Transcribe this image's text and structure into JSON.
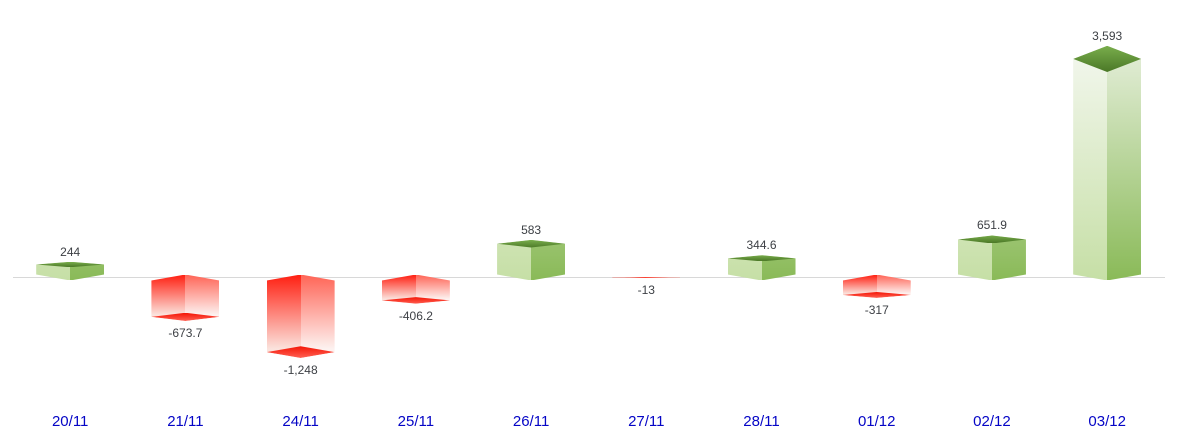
{
  "chart_data": {
    "type": "bar",
    "style": "3d-box-bars",
    "title": "",
    "xlabel": "",
    "ylabel": "",
    "grid": false,
    "legend": false,
    "baseline": 0,
    "ylim": [
      -1400,
      3700
    ],
    "categories": [
      "20/11",
      "21/11",
      "24/11",
      "25/11",
      "26/11",
      "27/11",
      "28/11",
      "01/12",
      "02/12",
      "03/12"
    ],
    "series": [
      {
        "name": "daily-values",
        "values": [
          244,
          -673.7,
          -1248,
          -406.2,
          583,
          -13,
          344.6,
          -317,
          651.9,
          3593
        ],
        "value_labels": [
          "244",
          "-673.7",
          "-1,248",
          "-406.2",
          "583",
          "-13",
          "344.6",
          "-317",
          "651.9",
          "3,593"
        ]
      }
    ],
    "colors": {
      "positive_cap_top": "#79ad4c",
      "positive_cap_bottom": "#4b7827",
      "positive_face_left_deep": "#c6dfa6",
      "positive_face_left_light": "#f3f7ee",
      "positive_face_right_deep": "#8aba58",
      "positive_face_right_light": "#e4eed9",
      "negative_face_left_deep": "#ff2012",
      "negative_face_left_pale": "#fbe3dd",
      "negative_face_right_deep": "#ff6557",
      "negative_face_right_pale": "#fdf2f0",
      "negative_cap_top": "#f41505",
      "negative_cap_bottom": "#ff6154",
      "axis_line": "#d8d8d8",
      "value_label_text": "#3d4045",
      "category_label_text": "#0505c6",
      "background": "#ffffff"
    }
  }
}
